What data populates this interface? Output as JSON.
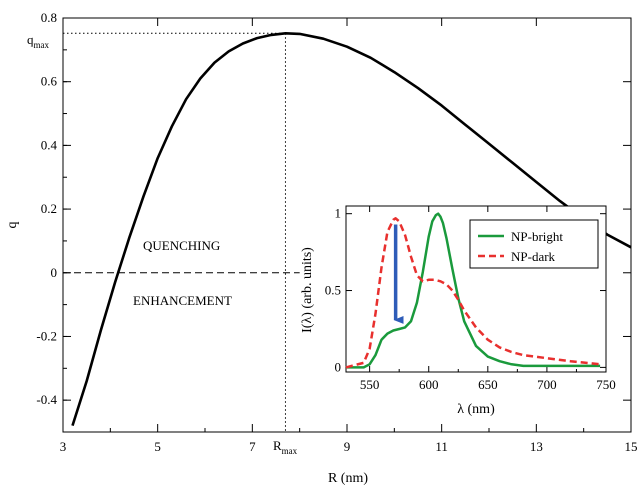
{
  "chart_data": [
    {
      "type": "line",
      "xlabel": "R (nm)",
      "ylabel": "q",
      "xlim": [
        3,
        15
      ],
      "ylim": [
        -0.5,
        0.8
      ],
      "x_ticks": [
        3,
        5,
        7,
        9,
        11,
        13,
        15
      ],
      "x_tick_labels": [
        "3",
        "5",
        "7",
        "9",
        "11",
        "13",
        "15"
      ],
      "y_ticks": [
        -0.4,
        -0.2,
        0,
        0.2,
        0.4,
        0.6,
        0.8
      ],
      "y_tick_labels": [
        "-0.4",
        "-0.2",
        "0",
        "0.2",
        "0.4",
        "0.6",
        "0.8"
      ],
      "grid": false,
      "series": [
        {
          "color": "#000000",
          "x": [
            3.2,
            3.5,
            3.8,
            4.1,
            4.4,
            4.7,
            5.0,
            5.3,
            5.6,
            5.9,
            6.2,
            6.5,
            6.8,
            7.1,
            7.4,
            7.7,
            8.0,
            8.5,
            9.0,
            9.5,
            10.0,
            10.5,
            11.0,
            11.5,
            12.0,
            12.5,
            13.0,
            13.5,
            14.0,
            14.5,
            15.0
          ],
          "y": [
            -0.48,
            -0.34,
            -0.18,
            -0.03,
            0.11,
            0.24,
            0.36,
            0.46,
            0.545,
            0.61,
            0.66,
            0.695,
            0.72,
            0.737,
            0.747,
            0.752,
            0.75,
            0.735,
            0.71,
            0.675,
            0.63,
            0.58,
            0.525,
            0.465,
            0.405,
            0.345,
            0.285,
            0.225,
            0.17,
            0.12,
            0.08
          ]
        }
      ],
      "reference_lines": {
        "zero_line_y": 0,
        "zero_line_x_end": 8.0,
        "r_max_x": 7.7,
        "q_max_y": 0.752
      },
      "annotations": {
        "q_max": "q",
        "q_max_sub": "max",
        "r_max": "R",
        "r_max_sub": "max",
        "quenching": "QUENCHING",
        "enhancement": "ENHANCEMENT"
      }
    },
    {
      "type": "line",
      "xlabel": "λ (nm)",
      "ylabel": "I(λ) (arb. units)",
      "xlim": [
        530,
        750
      ],
      "ylim": [
        -0.03,
        1.05
      ],
      "x_ticks": [
        550,
        600,
        650,
        700,
        750
      ],
      "x_tick_labels": [
        "550",
        "600",
        "650",
        "700",
        "750"
      ],
      "y_ticks": [
        0,
        0.5,
        1
      ],
      "y_tick_labels": [
        "0",
        "0.5",
        "1"
      ],
      "grid": false,
      "legend_position": "top-right",
      "series": [
        {
          "name": "NP-bright",
          "color": "#1a9a3c",
          "dash": "solid",
          "x": [
            530,
            545,
            550,
            555,
            560,
            565,
            570,
            575,
            580,
            585,
            590,
            595,
            600,
            603,
            606,
            608,
            610,
            612,
            615,
            620,
            625,
            630,
            640,
            650,
            660,
            670,
            680,
            690,
            700,
            720,
            745
          ],
          "y": [
            0.0,
            0.0,
            0.02,
            0.08,
            0.18,
            0.22,
            0.24,
            0.25,
            0.26,
            0.3,
            0.42,
            0.62,
            0.85,
            0.95,
            0.99,
            1.0,
            0.98,
            0.94,
            0.84,
            0.64,
            0.45,
            0.3,
            0.14,
            0.07,
            0.04,
            0.02,
            0.01,
            0.01,
            0.01,
            0.01,
            0.01
          ]
        },
        {
          "name": "NP-dark",
          "color": "#e8302e",
          "dash": "dashed",
          "x": [
            530,
            545,
            550,
            555,
            560,
            565,
            570,
            572,
            575,
            580,
            585,
            590,
            595,
            600,
            605,
            610,
            615,
            620,
            625,
            630,
            640,
            650,
            660,
            670,
            680,
            690,
            700,
            720,
            745
          ],
          "y": [
            0.0,
            0.03,
            0.12,
            0.35,
            0.65,
            0.88,
            0.96,
            0.97,
            0.95,
            0.86,
            0.72,
            0.6,
            0.56,
            0.57,
            0.57,
            0.56,
            0.54,
            0.5,
            0.44,
            0.37,
            0.26,
            0.18,
            0.13,
            0.1,
            0.08,
            0.07,
            0.06,
            0.04,
            0.02
          ]
        }
      ],
      "arrow": {
        "x": 572,
        "y_from": 0.93,
        "y_to": 0.25,
        "color": "#2e5cb8"
      }
    }
  ]
}
